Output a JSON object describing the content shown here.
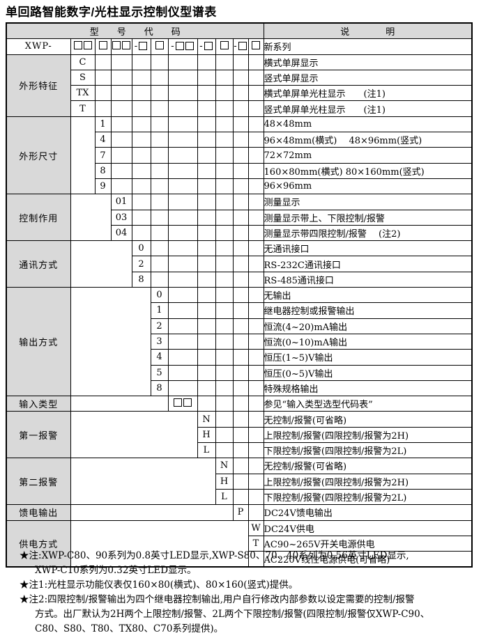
{
  "title": "单回路智能数字/光柱显示控制仪型谱表",
  "colors": {
    "header_bg": "#d9d9d9",
    "label_bg": "#d9d9d9",
    "border": "#000000",
    "text": "#000000",
    "page_bg": "#ffffff"
  },
  "table": {
    "header": {
      "code_header": "型　　号　　代　　码",
      "desc_header": "说　　　　明"
    },
    "prefix_row": {
      "prefix": "XWP-",
      "desc": "新系列",
      "groups": [
        {
          "dash": false,
          "boxes": 2
        },
        {
          "dash": false,
          "boxes": 1
        },
        {
          "dash": false,
          "boxes": 2
        },
        {
          "dash": true,
          "boxes": 1
        },
        {
          "dash": false,
          "boxes": 1
        },
        {
          "dash": true,
          "boxes": 2
        },
        {
          "dash": true,
          "boxes": 1
        },
        {
          "dash": false,
          "boxes": 1
        },
        {
          "dash": true,
          "boxes": 1
        },
        {
          "dash": false,
          "boxes": 1
        }
      ]
    },
    "sections": [
      {
        "id": "shape-feature",
        "label": "外形特征",
        "col": 1,
        "rows": [
          {
            "code": "C",
            "desc": "横式单屏显示"
          },
          {
            "code": "S",
            "desc": "竖式单屏显示"
          },
          {
            "code": "TX",
            "desc": "横式单屏单光柱显示　　(注1)"
          },
          {
            "code": "T",
            "desc": "竖式单屏单光柱显示　　(注1)"
          }
        ]
      },
      {
        "id": "dimensions",
        "label": "外形尺寸",
        "col": 2,
        "rows": [
          {
            "code": "1",
            "desc": "48×48mm"
          },
          {
            "code": "4",
            "desc": "96×48mm(横式)　 48×96mm(竖式)"
          },
          {
            "code": "7",
            "desc": "72×72mm"
          },
          {
            "code": "8",
            "desc": "160×80mm(横式) 80×160mm(竖式)"
          },
          {
            "code": "9",
            "desc": "96×96mm"
          }
        ]
      },
      {
        "id": "control-function",
        "label": "控制作用",
        "col": 3,
        "rows": [
          {
            "code": "01",
            "desc": "测量显示"
          },
          {
            "code": "03",
            "desc": "测量显示带上、下限控制/报警"
          },
          {
            "code": "04",
            "desc": "测量显示带四限控制/报警　 (注2)"
          }
        ]
      },
      {
        "id": "communication",
        "label": "通讯方式",
        "col": 4,
        "rows": [
          {
            "code": "0",
            "desc": "无通讯接口"
          },
          {
            "code": "2",
            "desc": "RS-232C通讯接口"
          },
          {
            "code": "8",
            "desc": "RS-485通讯接口"
          }
        ]
      },
      {
        "id": "output-mode",
        "label": "输出方式",
        "col": 5,
        "rows": [
          {
            "code": "0",
            "desc": "无输出"
          },
          {
            "code": "1",
            "desc": "继电器控制或报警输出"
          },
          {
            "code": "2",
            "desc": "恒流(4~20)mA输出"
          },
          {
            "code": "3",
            "desc": "恒流(0~10)mA输出"
          },
          {
            "code": "4",
            "desc": "恒压(1~5)V输出"
          },
          {
            "code": "5",
            "desc": "恒压(0~5)V输出"
          },
          {
            "code": "8",
            "desc": "特殊规格输出"
          }
        ]
      },
      {
        "id": "input-type",
        "label": "输入类型",
        "col": 6,
        "rows": [
          {
            "code": "□□",
            "desc": "参见“输入类型选型代码表”"
          }
        ]
      },
      {
        "id": "alarm-1",
        "label": "第一报警",
        "col": 7,
        "rows": [
          {
            "code": "N",
            "desc": "无控制/报警(可省略)"
          },
          {
            "code": "H",
            "desc": "上限控制/报警(四限控制/报警为2H)"
          },
          {
            "code": "L",
            "desc": "下限控制/报警(四限控制/报警为2L)"
          }
        ]
      },
      {
        "id": "alarm-2",
        "label": "第二报警",
        "col": 8,
        "rows": [
          {
            "code": "N",
            "desc": "无控制/报警(可省略)"
          },
          {
            "code": "H",
            "desc": "上限控制/报警(四限控制/报警为2H)"
          },
          {
            "code": "L",
            "desc": "下限控制/报警(四限控制/报警为2L)"
          }
        ]
      },
      {
        "id": "feed-output",
        "label": "馈电输出",
        "col": 9,
        "rows": [
          {
            "code": "P",
            "desc": "DC24V馈电输出"
          }
        ]
      },
      {
        "id": "power-supply",
        "label": "供电方式",
        "col": 10,
        "rows": [
          {
            "code": "W",
            "desc": "DC24V供电"
          },
          {
            "code": "T",
            "desc": "AC90~265V开关电源供电"
          },
          {
            "code": "",
            "desc": "AC220V线性电源供电(可省略)"
          }
        ]
      }
    ]
  },
  "notes": [
    {
      "marker": "★注:",
      "lines": [
        "XWP-C80、90系列为0.8英寸LED显示,XWP-S80、70、40系列为0.56英寸LED显示,",
        "XWP-C10系列为0.32英寸LED显示。"
      ]
    },
    {
      "marker": "★注1:",
      "lines": [
        "光柱显示功能仪表仅160×80(横式)、80×160(竖式)提供。"
      ]
    },
    {
      "marker": "★注2:",
      "lines": [
        "四限控制/报警输出为四个继电器控制输出,用户自行修改内部参数以设定需要的控制/报警",
        "方式。出厂默认为2H两个上限控制/报警、2L两个下限控制/报警(四限控制/报警仅XWP-C90、",
        "C80、S80、T80、TX80、C70系列提供)。"
      ]
    }
  ]
}
